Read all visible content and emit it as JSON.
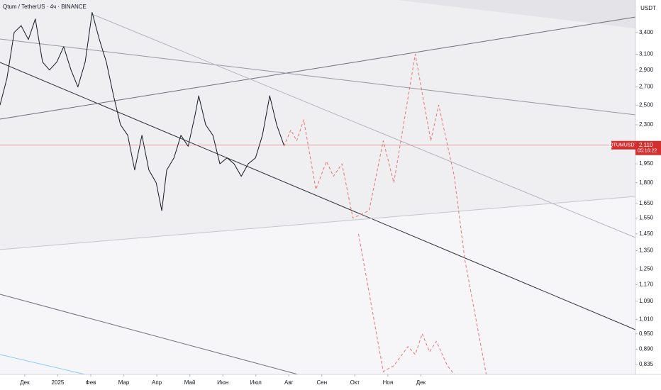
{
  "chart_data": {
    "type": "line",
    "title": "Qtum / TetherUS · 4ч · BINANCE",
    "y_axis_unit": "USDT",
    "symbol": "QTUMUSDT",
    "countdown": "05:16:22",
    "last_price": {
      "value": 2.11,
      "label": "2,110"
    },
    "last_price_color": "#d32f2f",
    "log_scale": true,
    "xlim": [
      -0.75,
      18.5
    ],
    "xticks": [
      {
        "value": 0,
        "label": "Дек"
      },
      {
        "value": 1,
        "label": "2025"
      },
      {
        "value": 2,
        "label": "Фев"
      },
      {
        "value": 3,
        "label": "Мар"
      },
      {
        "value": 4,
        "label": "Апр"
      },
      {
        "value": 5,
        "label": "Май"
      },
      {
        "value": 6,
        "label": "Июн"
      },
      {
        "value": 7,
        "label": "Июл"
      },
      {
        "value": 8,
        "label": "Авг"
      },
      {
        "value": 9,
        "label": "Сен"
      },
      {
        "value": 10,
        "label": "Окт"
      },
      {
        "value": 11,
        "label": "Ноя"
      },
      {
        "value": 12,
        "label": "Дек"
      }
    ],
    "ylim": [
      0.8,
      3.9
    ],
    "yticks": [
      {
        "value": 3.4,
        "label": "3,400"
      },
      {
        "value": 3.1,
        "label": "3,100"
      },
      {
        "value": 2.9,
        "label": "2,900"
      },
      {
        "value": 2.7,
        "label": "2,700"
      },
      {
        "value": 2.5,
        "label": "2,500"
      },
      {
        "value": 2.3,
        "label": "2,300"
      },
      {
        "value": 1.95,
        "label": "1,950"
      },
      {
        "value": 1.8,
        "label": "1,800"
      },
      {
        "value": 1.65,
        "label": "1,650"
      },
      {
        "value": 1.55,
        "label": "1,550"
      },
      {
        "value": 1.45,
        "label": "1,450"
      },
      {
        "value": 1.35,
        "label": "1,350"
      },
      {
        "value": 1.25,
        "label": "1,250"
      },
      {
        "value": 1.17,
        "label": "1,170"
      },
      {
        "value": 1.09,
        "label": "1,090"
      },
      {
        "value": 1.01,
        "label": "1,010"
      },
      {
        "value": 0.95,
        "label": "0,950"
      },
      {
        "value": 0.89,
        "label": "0,890"
      },
      {
        "value": 0.835,
        "label": "0,835"
      }
    ],
    "series": [
      {
        "color": "#131722",
        "line_style": "solid",
        "x": [
          -0.75,
          -0.54,
          -0.32,
          -0.11,
          0.11,
          0.32,
          0.54,
          0.75,
          0.97,
          1.18,
          1.4,
          1.61,
          1.83,
          2.04,
          2.26,
          2.47,
          2.69,
          2.9,
          3.12,
          3.33,
          3.55,
          3.76,
          3.98,
          4.15,
          4.3,
          4.52,
          4.73,
          4.95,
          5.16,
          5.27,
          5.48,
          5.7,
          5.91,
          6.13,
          6.34,
          6.56,
          6.77,
          6.99,
          7.2,
          7.42,
          7.63,
          7.85
        ],
        "values": [
          2.5,
          2.8,
          3.4,
          3.5,
          3.3,
          3.6,
          3.0,
          2.9,
          3.0,
          3.2,
          2.9,
          2.7,
          3.0,
          3.7,
          3.3,
          3.0,
          2.6,
          2.3,
          2.2,
          1.9,
          2.2,
          1.9,
          1.8,
          1.6,
          1.9,
          2.0,
          2.2,
          2.1,
          2.4,
          2.6,
          2.3,
          2.2,
          1.95,
          2.0,
          1.95,
          1.85,
          1.95,
          2.0,
          2.2,
          2.6,
          2.3,
          2.11
        ]
      },
      {
        "color": "#e57373",
        "line_style": "dashed",
        "x": [
          7.85,
          8.06,
          8.24,
          8.45,
          8.82,
          9.14,
          9.35,
          9.61,
          9.94,
          10.43,
          10.86,
          11.18,
          11.83,
          12.3,
          12.54,
          13.01,
          13.33,
          13.98
        ],
        "values": [
          2.1,
          2.25,
          2.15,
          2.35,
          1.75,
          1.97,
          1.85,
          1.95,
          1.55,
          1.6,
          2.15,
          1.8,
          3.1,
          2.15,
          2.5,
          1.85,
          1.3,
          0.8
        ]
      },
      {
        "color": "#e57373",
        "line_style": "dashed",
        "x": [
          10.11,
          10.86,
          11.18,
          11.61,
          11.83,
          12.04,
          12.26,
          12.47,
          12.8,
          13.01
        ],
        "values": [
          1.45,
          0.81,
          0.83,
          0.9,
          0.87,
          0.95,
          0.88,
          0.92,
          0.83,
          0.8
        ]
      }
    ]
  }
}
